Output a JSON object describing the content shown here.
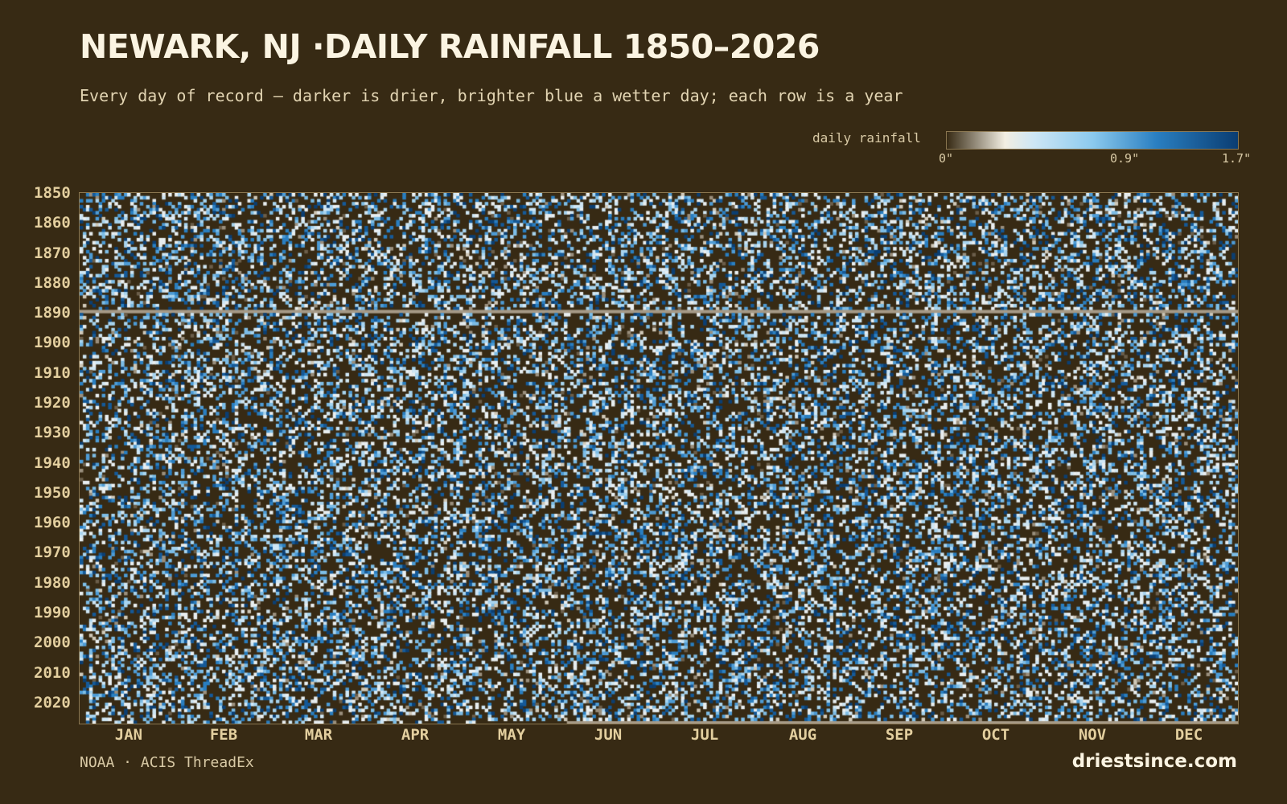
{
  "header": {
    "title": "NEWARK, NJ ·DAILY RAINFALL 1850–2026",
    "subtitle": "Every day of record — darker is drier, brighter blue a wetter day; each row is a year"
  },
  "legend": {
    "label": "daily rainfall",
    "ticks": [
      "0\"",
      "0.9\"",
      "1.7\""
    ],
    "colors": [
      "#372a14",
      "#f2eee2",
      "#cde6f5",
      "#8ccaee",
      "#2a7fc1",
      "#0a3d72"
    ]
  },
  "footer": {
    "source": "NOAA · ACIS ThreadEx",
    "brand": "driestsince.com"
  },
  "colors": {
    "background": "#372a14",
    "missing": "#a69a87"
  },
  "chart_data": {
    "type": "heatmap",
    "title": "NEWARK, NJ ·DAILY RAINFALL 1850–2026",
    "subtitle": "Every day of record — darker is drier, brighter blue a wetter day; each row is a year",
    "y_range": [
      1850,
      2026
    ],
    "y_ticks": [
      "1850",
      "1860",
      "1870",
      "1880",
      "1890",
      "1900",
      "1910",
      "1920",
      "1930",
      "1940",
      "1950",
      "1960",
      "1970",
      "1980",
      "1990",
      "2000",
      "2010",
      "2020"
    ],
    "x_ticks": [
      "JAN",
      "FEB",
      "MAR",
      "APR",
      "MAY",
      "JUN",
      "JUL",
      "AUG",
      "SEP",
      "OCT",
      "NOV",
      "DEC"
    ],
    "days_per_year": 366,
    "value_range": [
      0,
      1.7
    ],
    "value_unit": "inches",
    "missing_years": [
      1889
    ],
    "legend_placement": "top-right"
  }
}
